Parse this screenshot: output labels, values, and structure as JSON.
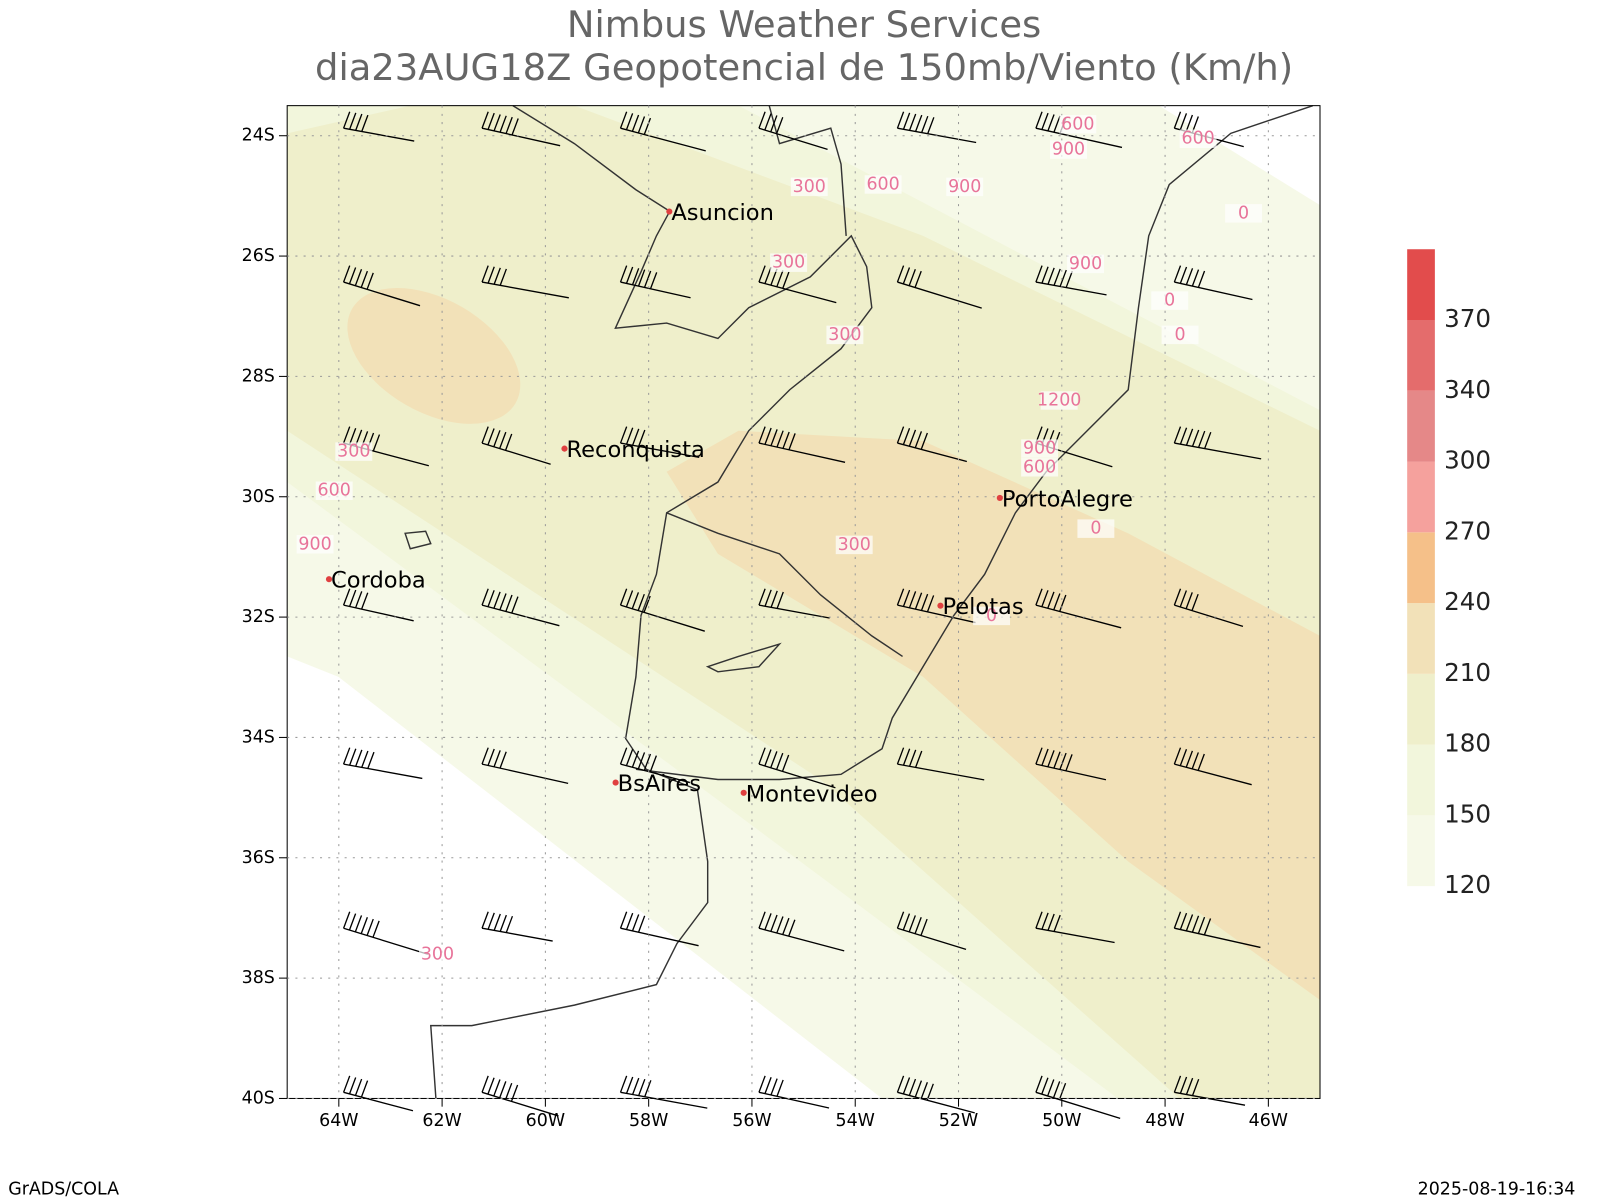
{
  "title": [
    "Nimbus Weather Services",
    "dia23AUG18Z Geopotencial de 150mb/Viento (Km/h)"
  ],
  "map": {
    "lon_range": [
      -65,
      -45
    ],
    "lat_range": [
      -23.5,
      -40
    ],
    "lon_ticks": [
      {
        "value": -64,
        "label": "64W"
      },
      {
        "value": -62,
        "label": "62W"
      },
      {
        "value": -60,
        "label": "60W"
      },
      {
        "value": -58,
        "label": "58W"
      },
      {
        "value": -56,
        "label": "56W"
      },
      {
        "value": -54,
        "label": "54W"
      },
      {
        "value": -52,
        "label": "52W"
      },
      {
        "value": -50,
        "label": "50W"
      },
      {
        "value": -48,
        "label": "48W"
      },
      {
        "value": -46,
        "label": "46W"
      }
    ],
    "lat_ticks": [
      {
        "value": -24,
        "label": "24S"
      },
      {
        "value": -26,
        "label": "26S"
      },
      {
        "value": -28,
        "label": "28S"
      },
      {
        "value": -30,
        "label": "30S"
      },
      {
        "value": -32,
        "label": "32S"
      },
      {
        "value": -34,
        "label": "34S"
      },
      {
        "value": -36,
        "label": "36S"
      },
      {
        "value": -38,
        "label": "38S"
      },
      {
        "value": -40,
        "label": "40S"
      }
    ],
    "cities": [
      {
        "name": "Asuncion",
        "lon": -57.6,
        "lat": -25.26
      },
      {
        "name": "Reconquista",
        "lon": -59.63,
        "lat": -29.2
      },
      {
        "name": "PortoAlegre",
        "lon": -51.2,
        "lat": -30.02
      },
      {
        "name": "Cordoba",
        "lon": -64.19,
        "lat": -31.37
      },
      {
        "name": "Pelotas",
        "lon": -52.35,
        "lat": -31.81
      },
      {
        "name": "BsAires",
        "lon": -58.64,
        "lat": -34.75
      },
      {
        "name": "Montevideo",
        "lon": -56.16,
        "lat": -34.92
      }
    ],
    "contour_labels": [
      {
        "value": 300,
        "lon": -54.89,
        "lat": -24.85
      },
      {
        "value": 600,
        "lon": -53.46,
        "lat": -24.81
      },
      {
        "value": 900,
        "lon": -51.88,
        "lat": -24.85
      },
      {
        "value": 300,
        "lon": -55.29,
        "lat": -26.11
      },
      {
        "value": 300,
        "lon": -54.2,
        "lat": -27.31
      },
      {
        "value": 900,
        "lon": -49.54,
        "lat": -26.13
      },
      {
        "value": 1200,
        "lon": -50.05,
        "lat": -28.4
      },
      {
        "value": 900,
        "lon": -50.43,
        "lat": -29.2
      },
      {
        "value": 600,
        "lon": -50.43,
        "lat": -29.51
      },
      {
        "value": 0,
        "lon": -49.34,
        "lat": -30.53
      },
      {
        "value": 300,
        "lon": -54.02,
        "lat": -30.8
      },
      {
        "value": 0,
        "lon": -47.91,
        "lat": -26.74
      },
      {
        "value": 0,
        "lon": -47.71,
        "lat": -27.31
      },
      {
        "value": 0,
        "lon": -46.48,
        "lat": -25.29
      },
      {
        "value": 600,
        "lon": -47.36,
        "lat": -24.05
      },
      {
        "value": 600,
        "lon": -49.69,
        "lat": -23.81
      },
      {
        "value": 900,
        "lon": -49.87,
        "lat": -24.23
      },
      {
        "value": 300,
        "lon": -63.71,
        "lat": -29.25
      },
      {
        "value": 600,
        "lon": -64.09,
        "lat": -29.9
      },
      {
        "value": 900,
        "lon": -64.46,
        "lat": -30.79
      },
      {
        "value": 300,
        "lon": -62.09,
        "lat": -37.61
      },
      {
        "value": 0,
        "lon": -51.36,
        "lat": -31.98
      }
    ]
  },
  "colorbar": {
    "levels": [
      120,
      150,
      180,
      210,
      240,
      270,
      300,
      340,
      370
    ],
    "colors": [
      "#f6f9e8",
      "#f2f6dc",
      "#efefcb",
      "#f2e1b8",
      "#f5c089",
      "#f5a19d",
      "#e58888",
      "#e46c6c",
      "#e24c4c"
    ]
  },
  "footer": {
    "left": "GrADS/COLA",
    "right": "2025-08-19-16:34"
  }
}
